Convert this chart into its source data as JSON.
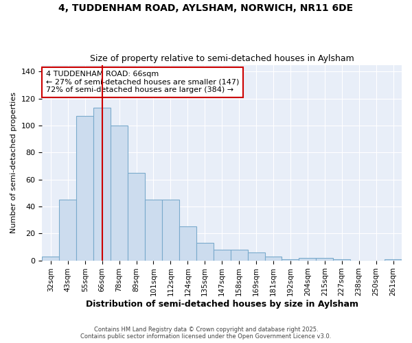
{
  "title_line1": "4, TUDDENHAM ROAD, AYLSHAM, NORWICH, NR11 6DE",
  "title_line2": "Size of property relative to semi-detached houses in Aylsham",
  "categories": [
    "32sqm",
    "43sqm",
    "55sqm",
    "66sqm",
    "78sqm",
    "89sqm",
    "101sqm",
    "112sqm",
    "124sqm",
    "135sqm",
    "147sqm",
    "158sqm",
    "169sqm",
    "181sqm",
    "192sqm",
    "204sqm",
    "215sqm",
    "227sqm",
    "238sqm",
    "250sqm",
    "261sqm"
  ],
  "values": [
    3,
    45,
    107,
    113,
    100,
    65,
    45,
    45,
    25,
    13,
    8,
    8,
    6,
    3,
    1,
    2,
    2,
    1,
    0,
    0,
    1
  ],
  "bar_color": "#ccdcee",
  "bar_edge_color": "#7aaacc",
  "ylabel": "Number of semi-detached properties",
  "xlabel": "Distribution of semi-detached houses by size in Aylsham",
  "ylim": [
    0,
    145
  ],
  "property_label": "4 TUDDENHAM ROAD: 66sqm",
  "pct_smaller": 27,
  "pct_larger": 72,
  "count_smaller": 147,
  "count_larger": 384,
  "red_line_index": 3,
  "annotation_box_color": "#ffffff",
  "annotation_box_edge_color": "#cc0000",
  "footer_line1": "Contains HM Land Registry data © Crown copyright and database right 2025.",
  "footer_line2": "Contains public sector information licensed under the Open Government Licence v3.0.",
  "background_color": "#ffffff",
  "plot_bg_color": "#e8eef8",
  "grid_color": "#ffffff"
}
